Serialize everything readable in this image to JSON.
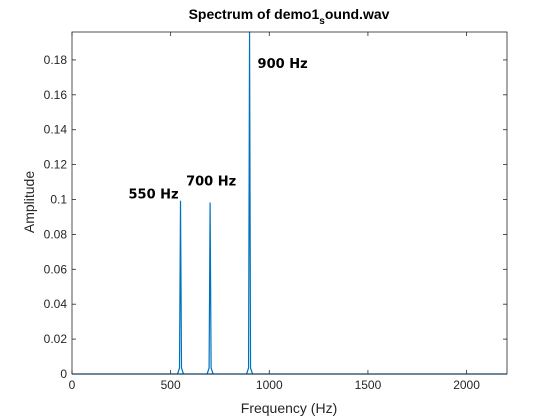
{
  "chart_data": {
    "type": "line",
    "title": {
      "prefix": "Spectrum of demo1",
      "subscript": "s",
      "suffix": "ound.wav"
    },
    "xlabel": "Frequency (Hz)",
    "ylabel": "Amplitude",
    "xlim": [
      0,
      2205
    ],
    "ylim": [
      0,
      0.196
    ],
    "xticks": [
      0,
      500,
      1000,
      1500,
      2000
    ],
    "yticks": [
      0,
      0.02,
      0.04,
      0.06,
      0.08,
      0.1,
      0.12,
      0.14,
      0.16,
      0.18
    ],
    "ytick_labels": [
      "0",
      "0.02",
      "0.04",
      "0.06",
      "0.08",
      "0.1",
      "0.12",
      "0.14",
      "0.16",
      "0.18"
    ],
    "grid": false,
    "line_color": "#0072BD",
    "peaks": [
      {
        "x": 550,
        "y": 0.099
      },
      {
        "x": 700,
        "y": 0.098
      },
      {
        "x": 900,
        "y": 0.196
      }
    ],
    "annotations": [
      {
        "text": "550 Hz",
        "x": 550,
        "y": 0.099
      },
      {
        "text": "700 Hz",
        "x": 700,
        "y": 0.107
      },
      {
        "text": "900 Hz",
        "x": 900,
        "y": 0.18
      }
    ]
  }
}
